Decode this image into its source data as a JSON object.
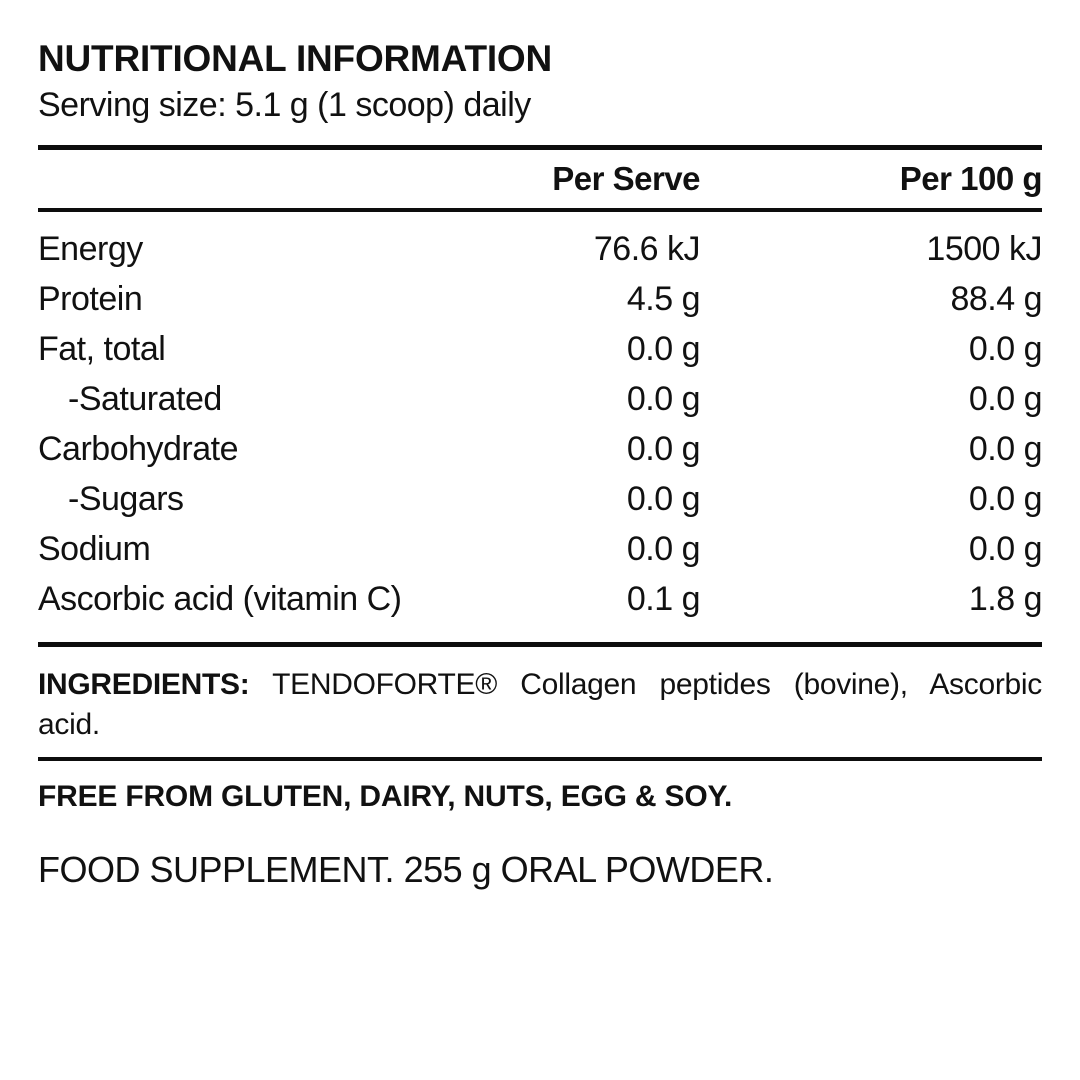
{
  "title": "NUTRITIONAL INFORMATION",
  "serving_size": "Serving size: 5.1 g (1 scoop) daily",
  "table": {
    "col_serve": "Per Serve",
    "col_100g": "Per 100 g",
    "rows": [
      {
        "label": "Energy",
        "indent": false,
        "serve": "76.6 kJ",
        "per100": "1500 kJ"
      },
      {
        "label": "Protein",
        "indent": false,
        "serve": "4.5 g",
        "per100": "88.4 g"
      },
      {
        "label": "Fat, total",
        "indent": false,
        "serve": "0.0 g",
        "per100": "0.0 g"
      },
      {
        "label": "-Saturated",
        "indent": true,
        "serve": "0.0 g",
        "per100": "0.0 g"
      },
      {
        "label": "Carbohydrate",
        "indent": false,
        "serve": "0.0 g",
        "per100": "0.0 g"
      },
      {
        "label": "-Sugars",
        "indent": true,
        "serve": "0.0 g",
        "per100": "0.0 g"
      },
      {
        "label": "Sodium",
        "indent": false,
        "serve": "0.0 g",
        "per100": "0.0 g"
      },
      {
        "label": "Ascorbic acid (vitamin C)",
        "indent": false,
        "serve": "0.1 g",
        "per100": "1.8 g"
      }
    ]
  },
  "ingredients": {
    "label": "INGREDIENTS:",
    "line1_rest": "TENDOFORTE® Collagen peptides (bovine), Ascorbic",
    "line2": "acid."
  },
  "free_from": "FREE FROM GLUTEN, DAIRY, NUTS, EGG & SOY.",
  "supplement": "FOOD SUPPLEMENT. 255 g ORAL POWDER."
}
